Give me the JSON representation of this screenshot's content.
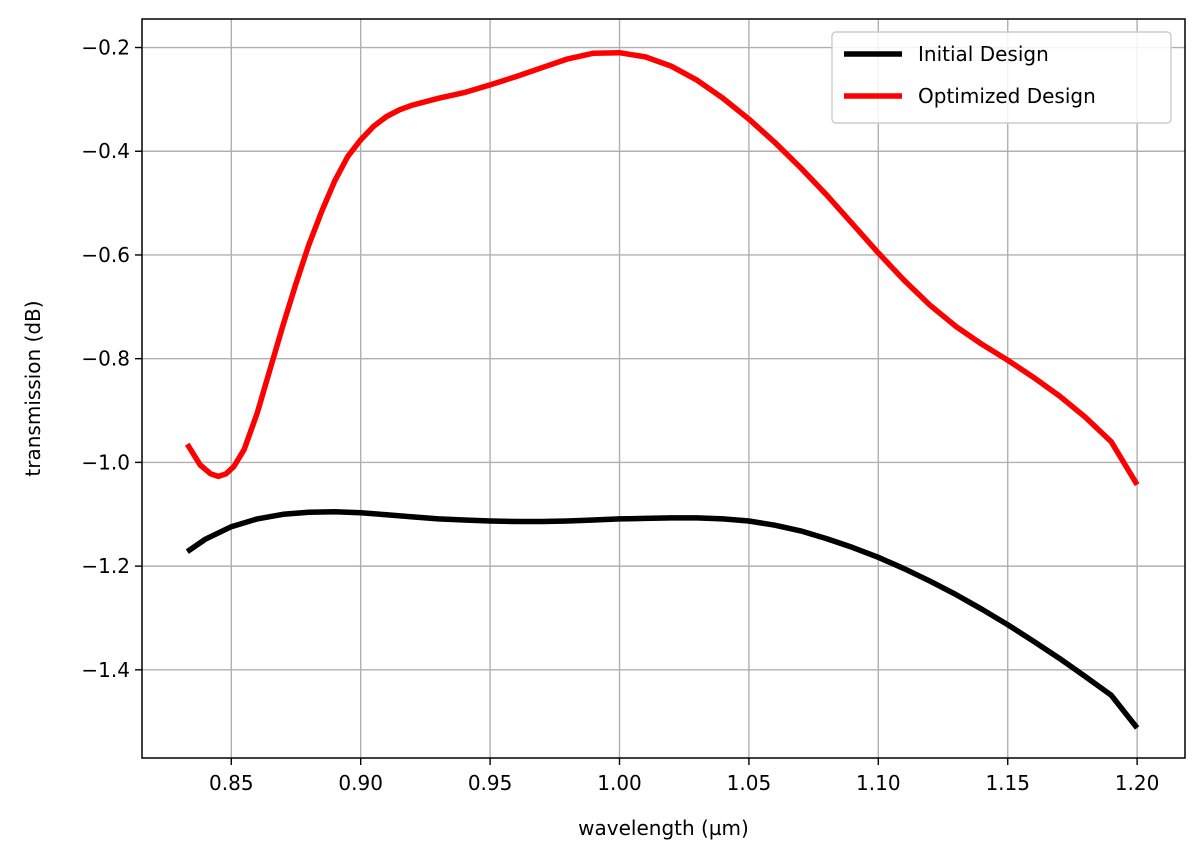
{
  "chart_data": {
    "type": "line",
    "title": "",
    "xlabel": "wavelength (µm)",
    "ylabel": "transmission (dB)",
    "xlim": [
      0.8155,
      1.2185
    ],
    "ylim": [
      -1.57,
      -0.145
    ],
    "grid": true,
    "legend_position": "top-right",
    "x_ticks": [
      0.85,
      0.9,
      0.95,
      1.0,
      1.05,
      1.1,
      1.15,
      1.2
    ],
    "x_tick_labels": [
      "0.85",
      "0.90",
      "0.95",
      "1.00",
      "1.05",
      "1.10",
      "1.15",
      "1.20"
    ],
    "y_ticks": [
      -0.2,
      -0.4,
      -0.6,
      -0.8,
      -1.0,
      -1.2,
      -1.4
    ],
    "y_tick_labels": [
      "−0.2",
      "−0.4",
      "−0.6",
      "−0.8",
      "−1.0",
      "−1.2",
      "−1.4"
    ],
    "series": [
      {
        "name": "Initial Design",
        "color": "#000000",
        "x": [
          0.833,
          0.84,
          0.85,
          0.86,
          0.87,
          0.88,
          0.89,
          0.9,
          0.91,
          0.92,
          0.93,
          0.94,
          0.95,
          0.96,
          0.97,
          0.98,
          0.99,
          1.0,
          1.01,
          1.02,
          1.03,
          1.04,
          1.05,
          1.06,
          1.07,
          1.08,
          1.09,
          1.1,
          1.11,
          1.12,
          1.13,
          1.14,
          1.15,
          1.16,
          1.17,
          1.18,
          1.19,
          1.2
        ],
        "y": [
          -1.172,
          -1.148,
          -1.124,
          -1.109,
          -1.1,
          -1.096,
          -1.095,
          -1.097,
          -1.101,
          -1.105,
          -1.109,
          -1.111,
          -1.113,
          -1.114,
          -1.114,
          -1.113,
          -1.111,
          -1.109,
          -1.108,
          -1.107,
          -1.107,
          -1.109,
          -1.113,
          -1.121,
          -1.132,
          -1.147,
          -1.164,
          -1.183,
          -1.205,
          -1.229,
          -1.255,
          -1.283,
          -1.313,
          -1.345,
          -1.378,
          -1.413,
          -1.449,
          -1.512
        ]
      },
      {
        "name": "Optimized Design",
        "color": "#ff0000",
        "x": [
          0.833,
          0.838,
          0.842,
          0.845,
          0.848,
          0.851,
          0.855,
          0.86,
          0.865,
          0.87,
          0.875,
          0.88,
          0.885,
          0.89,
          0.895,
          0.9,
          0.905,
          0.91,
          0.915,
          0.92,
          0.93,
          0.94,
          0.95,
          0.96,
          0.97,
          0.98,
          0.99,
          1.0,
          1.01,
          1.02,
          1.03,
          1.04,
          1.05,
          1.06,
          1.07,
          1.08,
          1.09,
          1.1,
          1.11,
          1.12,
          1.13,
          1.14,
          1.15,
          1.16,
          1.17,
          1.18,
          1.19,
          1.2
        ],
        "y": [
          -0.965,
          -1.005,
          -1.022,
          -1.027,
          -1.022,
          -1.008,
          -0.975,
          -0.905,
          -0.82,
          -0.735,
          -0.655,
          -0.58,
          -0.515,
          -0.457,
          -0.41,
          -0.378,
          -0.352,
          -0.333,
          -0.32,
          -0.311,
          -0.298,
          -0.287,
          -0.272,
          -0.256,
          -0.239,
          -0.222,
          -0.211,
          -0.21,
          -0.218,
          -0.236,
          -0.263,
          -0.298,
          -0.338,
          -0.383,
          -0.432,
          -0.484,
          -0.54,
          -0.596,
          -0.649,
          -0.697,
          -0.738,
          -0.772,
          -0.803,
          -0.836,
          -0.872,
          -0.913,
          -0.96,
          -1.043
        ]
      }
    ]
  }
}
